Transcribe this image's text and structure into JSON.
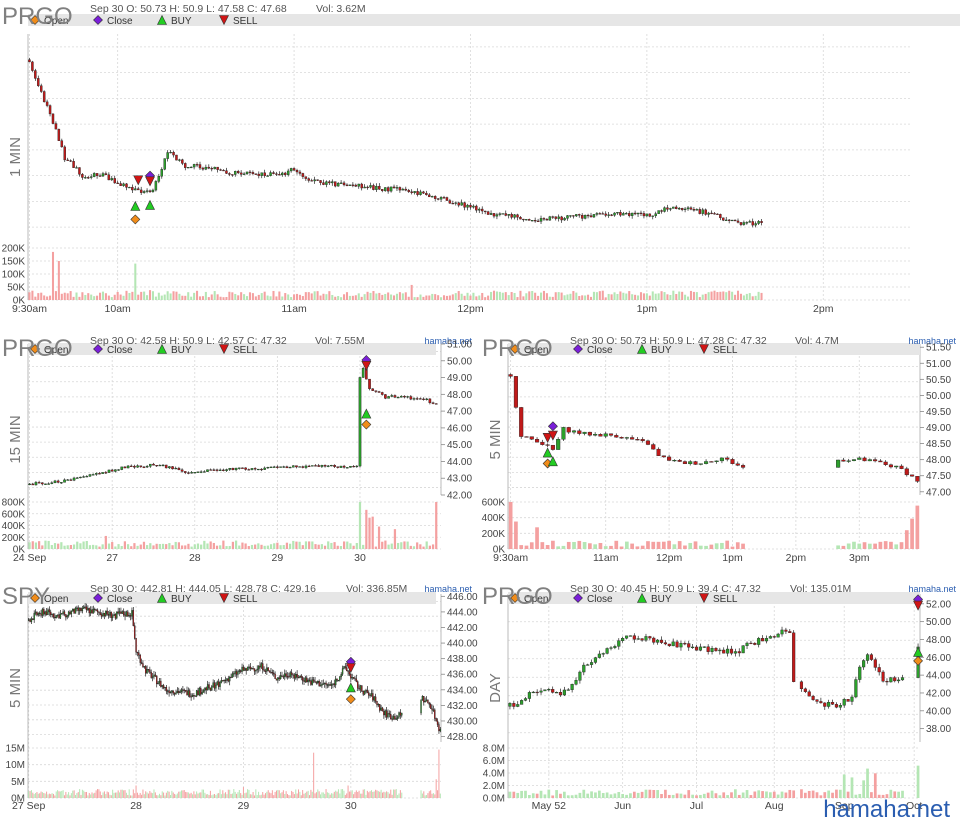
{
  "colors": {
    "up": "#2ca02c",
    "down": "#c01a1a",
    "vol_up": "#b4e6b4",
    "vol_down": "#f4a0a0",
    "open_marker": "#f08c1a",
    "close_marker": "#7a1ed8",
    "buy_marker": "#22cc22",
    "sell_marker": "#d01515",
    "legend_bg": "#e6e6e6",
    "grid": "#d8d8d8",
    "symbol": "#808080",
    "watermark": "#2a5db0"
  },
  "legend": {
    "open": "Open",
    "close": "Close",
    "buy": "BUY",
    "sell": "SELL"
  },
  "watermark": "hamaha.net",
  "chart_data": [
    {
      "id": "p1",
      "type": "candlestick",
      "symbol": "PRGO",
      "timeframe": "1 MIN",
      "info": "Sep 30 O: 50.73 H: 50.9 L: 47.58 C: 47.68",
      "vol": "Vol: 3.62M",
      "source": "",
      "price_range": [
        47.3,
        51.3
      ],
      "price_ticks": [],
      "volume_ticks": [
        "200K",
        "150K",
        "100K",
        "50K",
        "0K"
      ],
      "volume_max": 200,
      "x_labels": [
        "9:30am",
        "10am",
        "11am",
        "12pm",
        "1pm",
        "2pm"
      ],
      "x_label_index": [
        0,
        30,
        90,
        150,
        210,
        270
      ],
      "n_bars": 300,
      "anchors": [
        [
          0,
          50.8
        ],
        [
          3,
          50.3
        ],
        [
          8,
          49.6
        ],
        [
          12,
          48.9
        ],
        [
          18,
          48.55
        ],
        [
          25,
          48.55
        ],
        [
          33,
          48.35
        ],
        [
          38,
          48.2
        ],
        [
          42,
          48.25
        ],
        [
          46,
          48.85
        ],
        [
          48,
          49.05
        ],
        [
          52,
          48.75
        ],
        [
          60,
          48.7
        ],
        [
          70,
          48.6
        ],
        [
          85,
          48.55
        ],
        [
          90,
          48.7
        ],
        [
          95,
          48.45
        ],
        [
          110,
          48.35
        ],
        [
          130,
          48.25
        ],
        [
          140,
          48.1
        ],
        [
          150,
          47.95
        ],
        [
          158,
          47.8
        ],
        [
          170,
          47.7
        ],
        [
          185,
          47.75
        ],
        [
          200,
          47.8
        ],
        [
          212,
          47.8
        ],
        [
          218,
          47.95
        ],
        [
          225,
          47.9
        ],
        [
          235,
          47.75
        ],
        [
          242,
          47.6
        ],
        [
          250,
          47.63
        ]
      ],
      "visible": [
        [
          0,
          250
        ]
      ],
      "noise": 0.05,
      "markers": [
        {
          "type": "open",
          "i": 36,
          "price": 47.7
        },
        {
          "type": "buy",
          "i": 36,
          "price": 47.96
        },
        {
          "type": "sell",
          "i": 37,
          "price": 48.46
        },
        {
          "type": "buy",
          "i": 41,
          "price": 47.98
        },
        {
          "type": "close",
          "i": 41,
          "price": 48.55
        },
        {
          "type": "sell",
          "i": 41,
          "price": 48.44
        }
      ],
      "volume_spikes": [
        [
          8,
          185
        ],
        [
          10,
          150
        ],
        [
          36,
          140
        ],
        [
          130,
          58
        ],
        [
          41,
          38
        ],
        [
          50,
          32
        ]
      ]
    },
    {
      "id": "p2",
      "type": "candlestick",
      "symbol": "PRGO",
      "timeframe": "15 MIN",
      "info": "Sep 30 O: 42.58 H: 50.9 L: 42.57 C: 47.32",
      "vol": "Vol: 7.55M",
      "source": "hamaha.net",
      "price_range": [
        42,
        51
      ],
      "price_ticks": [
        "51.00",
        "50.00",
        "49.00",
        "48.00",
        "47.00",
        "46.00",
        "45.00",
        "44.00",
        "43.00",
        "42.00"
      ],
      "volume_ticks": [
        "800K",
        "600K",
        "400K",
        "200K",
        "0K"
      ],
      "volume_max": 900,
      "x_labels": [
        "24 Sep",
        "27",
        "28",
        "29",
        "30"
      ],
      "x_label_index": [
        0,
        26,
        52,
        78,
        104
      ],
      "n_bars": 130,
      "anchors": [
        [
          0,
          42.65
        ],
        [
          12,
          42.85
        ],
        [
          22,
          43.3
        ],
        [
          30,
          43.65
        ],
        [
          40,
          43.8
        ],
        [
          50,
          43.35
        ],
        [
          60,
          43.5
        ],
        [
          75,
          43.6
        ],
        [
          85,
          43.7
        ],
        [
          103,
          43.7
        ],
        [
          104,
          49.0
        ],
        [
          105,
          49.5
        ],
        [
          107,
          48.4
        ],
        [
          112,
          47.8
        ],
        [
          115,
          47.9
        ],
        [
          125,
          47.65
        ],
        [
          129,
          47.32
        ]
      ],
      "visible": [
        [
          0,
          129
        ]
      ],
      "noise": 0.08,
      "markers": [
        {
          "type": "open",
          "i": 106,
          "price": 46.2
        },
        {
          "type": "buy",
          "i": 106,
          "price": 46.85
        },
        {
          "type": "close",
          "i": 106,
          "price": 50.05
        },
        {
          "type": "sell",
          "i": 106,
          "price": 49.7
        }
      ],
      "volume_spikes": [
        [
          104,
          900
        ],
        [
          106,
          750
        ],
        [
          107,
          600
        ],
        [
          108,
          620
        ],
        [
          110,
          430
        ],
        [
          115,
          380
        ],
        [
          128,
          900
        ],
        [
          24,
          250
        ]
      ]
    },
    {
      "id": "p3",
      "type": "candlestick",
      "symbol": "PRGO",
      "timeframe": "5 MIN",
      "info": "Sep 30 O: 50.73 H: 50.9 L: 47.28 C: 47.32",
      "vol": "Vol: 4.7M",
      "source": "hamaha.net",
      "price_range": [
        46.9,
        51.6
      ],
      "price_ticks": [
        "51.50",
        "51.00",
        "50.50",
        "50.00",
        "49.50",
        "49.00",
        "48.50",
        "48.00",
        "47.50",
        "47.00"
      ],
      "volume_ticks": [
        "600K",
        "400K",
        "200K",
        "0K"
      ],
      "volume_max": 650,
      "x_labels": [
        "9:30am",
        "11am",
        "12pm",
        "1pm",
        "2pm",
        "3pm"
      ],
      "x_label_index": [
        0,
        18,
        30,
        42,
        54,
        66
      ],
      "n_bars": 78,
      "anchors": [
        [
          0,
          50.65
        ],
        [
          2,
          48.7
        ],
        [
          5,
          48.6
        ],
        [
          8,
          48.3
        ],
        [
          10,
          48.95
        ],
        [
          14,
          48.8
        ],
        [
          20,
          48.75
        ],
        [
          26,
          48.5
        ],
        [
          28,
          48.1
        ],
        [
          32,
          47.9
        ],
        [
          36,
          47.9
        ],
        [
          40,
          48.05
        ],
        [
          44,
          47.75
        ],
        [
          45,
          47.75
        ],
        [
          63,
          48.0
        ],
        [
          66,
          48.0
        ],
        [
          70,
          47.9
        ],
        [
          74,
          47.7
        ],
        [
          77,
          47.35
        ]
      ],
      "visible": [
        [
          0,
          45
        ],
        [
          62,
          78
        ]
      ],
      "noise": 0.06,
      "markers": [
        {
          "type": "open",
          "i": 7,
          "price": 47.88
        },
        {
          "type": "buy",
          "i": 7,
          "price": 48.22
        },
        {
          "type": "buy",
          "i": 8,
          "price": 47.95
        },
        {
          "type": "sell",
          "i": 7,
          "price": 48.68
        },
        {
          "type": "close",
          "i": 8,
          "price": 49.04
        },
        {
          "type": "sell",
          "i": 8,
          "price": 48.75
        }
      ],
      "volume_spikes": [
        [
          0,
          650
        ],
        [
          1,
          380
        ],
        [
          5,
          300
        ],
        [
          76,
          420
        ],
        [
          77,
          600
        ],
        [
          75,
          260
        ]
      ]
    },
    {
      "id": "p4",
      "type": "candlestick",
      "symbol": "SPY",
      "timeframe": "5 MIN",
      "info": "Sep 30 O: 442.81 H: 444.05 L: 428.78 C: 429.16",
      "vol": "Vol: 336.85M",
      "source": "hamaha.net",
      "price_range": [
        427.3,
        446.3
      ],
      "price_ticks": [
        "446.00",
        "444.00",
        "442.00",
        "440.00",
        "438.00",
        "436.00",
        "434.00",
        "432.00",
        "430.00",
        "428.00"
      ],
      "volume_ticks": [
        "15M",
        "10M",
        "5M",
        "0M"
      ],
      "volume_max": 16,
      "x_labels": [
        "27 Sep",
        "28",
        "29",
        "30"
      ],
      "x_label_index": [
        0,
        78,
        156,
        234
      ],
      "n_bars": 300,
      "anchors": [
        [
          0,
          443.0
        ],
        [
          10,
          444.1
        ],
        [
          20,
          443.5
        ],
        [
          40,
          444.3
        ],
        [
          60,
          443.6
        ],
        [
          75,
          443.8
        ],
        [
          78,
          439.0
        ],
        [
          85,
          436.5
        ],
        [
          100,
          434.0
        ],
        [
          120,
          433.5
        ],
        [
          140,
          435.0
        ],
        [
          155,
          436.5
        ],
        [
          170,
          437.0
        ],
        [
          180,
          435.5
        ],
        [
          190,
          436.2
        ],
        [
          205,
          435.0
        ],
        [
          220,
          434.5
        ],
        [
          230,
          436.8
        ],
        [
          240,
          434.2
        ],
        [
          250,
          433.0
        ],
        [
          258,
          431.0
        ],
        [
          265,
          430.5
        ],
        [
          270,
          430.7
        ],
        [
          285,
          433.0
        ],
        [
          292,
          432.0
        ],
        [
          298,
          429.1
        ]
      ],
      "visible": [
        [
          0,
          272
        ],
        [
          285,
          300
        ]
      ],
      "noise": 0.45,
      "markers": [
        {
          "type": "open",
          "i": 234,
          "price": 432.8
        },
        {
          "type": "buy",
          "i": 234,
          "price": 434.3
        },
        {
          "type": "close",
          "i": 234,
          "price": 437.6
        },
        {
          "type": "sell",
          "i": 234,
          "price": 436.8
        }
      ],
      "volume_spikes": [
        [
          78,
          4
        ],
        [
          156,
          3.5
        ],
        [
          207,
          14.5
        ],
        [
          232,
          4
        ],
        [
          298,
          15.5
        ],
        [
          296,
          6
        ]
      ]
    },
    {
      "id": "p5",
      "type": "candlestick",
      "symbol": "PRGO",
      "timeframe": "DAY",
      "info": "Sep 30 O: 40.45 H: 50.9 L: 39.4 C: 47.32",
      "vol": "Vol: 135.01M",
      "source": "hamaha.net",
      "price_range": [
        36.5,
        53.1
      ],
      "price_ticks": [
        "52.00",
        "50.00",
        "48.00",
        "46.00",
        "44.00",
        "42.00",
        "40.00",
        "38.00"
      ],
      "volume_ticks": [
        "8.0M",
        "6.0M",
        "4.0M",
        "2.0M",
        "0.0M"
      ],
      "volume_max": 8.5,
      "x_labels": [
        "May 52",
        "Jun",
        "Jul",
        "Aug",
        "Sep",
        "Oct"
      ],
      "x_label_index": [
        10,
        29,
        48,
        68,
        86,
        104
      ],
      "n_bars": 106,
      "anchors": [
        [
          0,
          40.5
        ],
        [
          8,
          42.5
        ],
        [
          14,
          42.0
        ],
        [
          20,
          45.5
        ],
        [
          26,
          47.0
        ],
        [
          30,
          48.5
        ],
        [
          36,
          48.0
        ],
        [
          42,
          47.5
        ],
        [
          50,
          47.0
        ],
        [
          58,
          46.5
        ],
        [
          64,
          48.0
        ],
        [
          72,
          49.0
        ],
        [
          73,
          43.0
        ],
        [
          78,
          41.0
        ],
        [
          84,
          40.5
        ],
        [
          88,
          41.5
        ],
        [
          90,
          45.0
        ],
        [
          92,
          46.5
        ],
        [
          96,
          43.5
        ],
        [
          100,
          43.5
        ],
        [
          101,
          43.8
        ],
        [
          105,
          47.3
        ]
      ],
      "visible": [
        [
          0,
          74
        ],
        [
          75,
          102
        ],
        [
          105,
          106
        ]
      ],
      "noise": 0.35,
      "markers": [
        {
          "type": "open",
          "i": 105,
          "price": 45.6
        },
        {
          "type": "buy",
          "i": 105,
          "price": 46.6
        },
        {
          "type": "close",
          "i": 105,
          "price": 52.5
        },
        {
          "type": "sell",
          "i": 105,
          "price": 51.8
        }
      ],
      "volume_spikes": [
        [
          74,
          6.5
        ],
        [
          86,
          4.0
        ],
        [
          88,
          3.5
        ],
        [
          92,
          5.0
        ],
        [
          94,
          4.2
        ],
        [
          105,
          5.5
        ],
        [
          91,
          3.0
        ]
      ]
    }
  ]
}
